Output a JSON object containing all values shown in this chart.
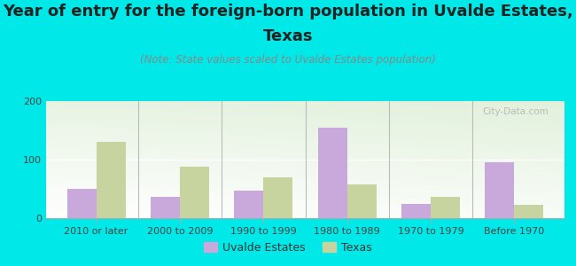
{
  "title_line1": "Year of entry for the foreign-born population in Uvalde Estates,",
  "title_line2": "Texas",
  "subtitle": "(Note: State values scaled to Uvalde Estates population)",
  "categories": [
    "2010 or later",
    "2000 to 2009",
    "1990 to 1999",
    "1980 to 1989",
    "1970 to 1979",
    "Before 1970"
  ],
  "uvalde_values": [
    50,
    37,
    47,
    155,
    25,
    95
  ],
  "texas_values": [
    130,
    88,
    70,
    57,
    37,
    22
  ],
  "uvalde_color": "#c9a8dc",
  "texas_color": "#c8d4a0",
  "background_color": "#00e8e8",
  "ylim": [
    0,
    200
  ],
  "yticks": [
    0,
    100,
    200
  ],
  "bar_width": 0.35,
  "legend_uvalde": "Uvalde Estates",
  "legend_texas": "Texas",
  "watermark": "City-Data.com",
  "title_fontsize": 13,
  "subtitle_fontsize": 8.5,
  "tick_fontsize": 8,
  "legend_fontsize": 9
}
